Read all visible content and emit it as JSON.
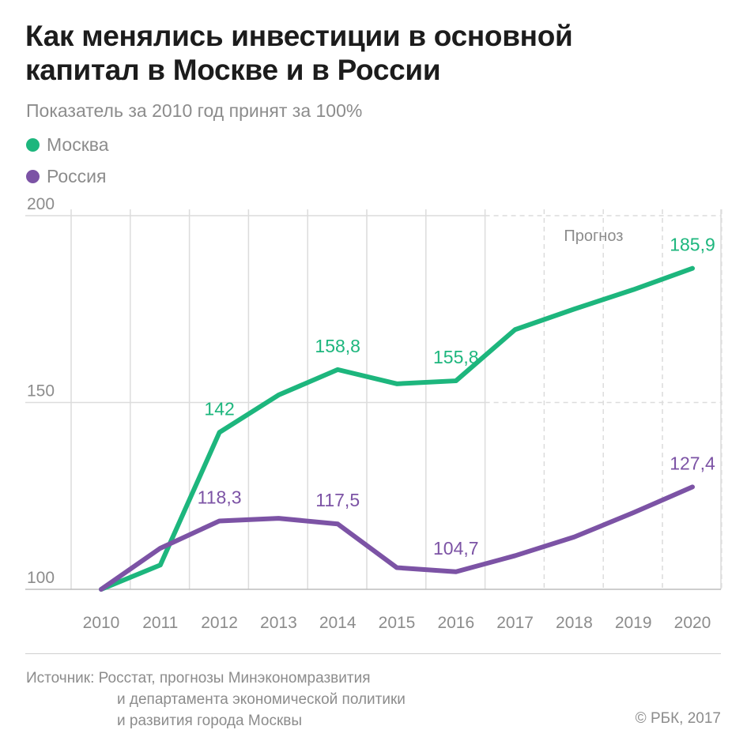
{
  "title_lines": [
    "Как менялись инвестиции в основной",
    "капитал в Москве и в России"
  ],
  "subtitle": "Показатель за 2010 год принят за 100%",
  "colors": {
    "moscow": "#1db67d",
    "russia": "#7c53a5",
    "grid": "#dcdcdc",
    "axis_text": "#8c8c8c"
  },
  "chart_data": {
    "type": "line",
    "title": "Как менялись инвестиции в основной капитал в Москве и в России",
    "subtitle": "Показатель за 2010 год принят за 100%",
    "x": [
      "2010",
      "2011",
      "2012",
      "2013",
      "2014",
      "2015",
      "2016",
      "2017",
      "2018",
      "2019",
      "2020"
    ],
    "ylim": [
      100,
      200
    ],
    "yticks": [
      100,
      150,
      200
    ],
    "grid": true,
    "legend_position": "top-left",
    "forecast_label": "Прогноз",
    "forecast_from": "2017",
    "series": [
      {
        "name": "Москва",
        "color": "#1db67d",
        "values": [
          100,
          106.5,
          142,
          152,
          158.8,
          155,
          155.8,
          169.5,
          175,
          180.2,
          185.9
        ],
        "labels": [
          "",
          "",
          "142",
          "",
          "158,8",
          "",
          "155,8",
          "",
          "",
          "",
          "185,9"
        ]
      },
      {
        "name": "Россия",
        "color": "#7c53a5",
        "values": [
          100,
          111,
          118.3,
          119,
          117.5,
          105.8,
          104.7,
          109,
          114,
          120.5,
          127.4
        ],
        "labels": [
          "",
          "",
          "118,3",
          "",
          "117,5",
          "",
          "104,7",
          "",
          "",
          "",
          "127,4"
        ]
      }
    ]
  },
  "source": {
    "lines": [
      "Источник: Росстат, прогнозы Минэкономразвития",
      "и департамента экономической политики",
      "и развития города Москвы"
    ]
  },
  "copyright": "© РБК, 2017"
}
